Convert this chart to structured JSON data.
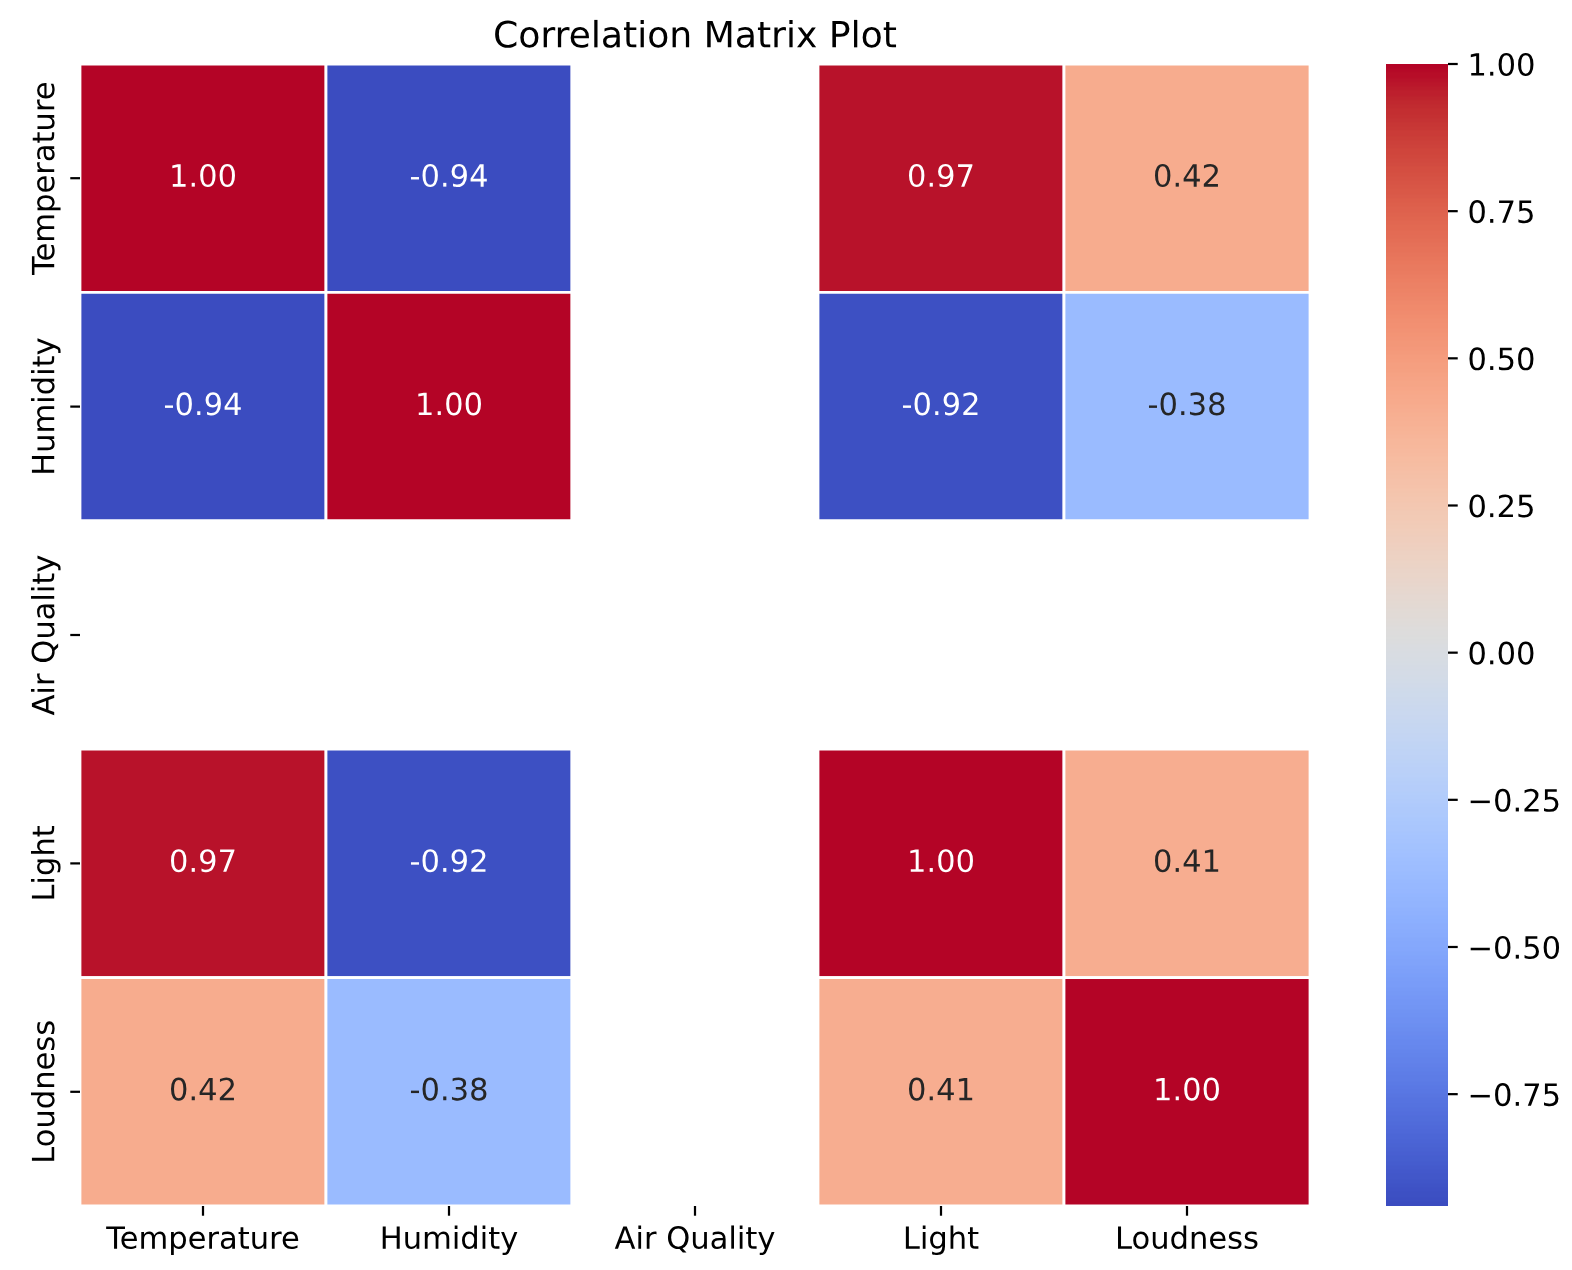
{
  "chart_data": {
    "type": "heatmap",
    "title": "Correlation Matrix Plot",
    "categories": [
      "Temperature",
      "Humidity",
      "Air Quality",
      "Light",
      "Loudness"
    ],
    "y_categories": [
      "Temperature",
      "Humidity",
      "Air Quality",
      "Light",
      "Loudness"
    ],
    "cells": [
      [
        1.0,
        -0.94,
        null,
        0.97,
        0.42
      ],
      [
        -0.94,
        1.0,
        null,
        -0.92,
        -0.38
      ],
      [
        null,
        null,
        null,
        null,
        null
      ],
      [
        0.97,
        -0.92,
        null,
        1.0,
        0.41
      ],
      [
        0.42,
        -0.38,
        null,
        0.41,
        1.0
      ]
    ],
    "cell_labels": [
      [
        "1.00",
        "-0.94",
        null,
        "0.97",
        "0.42"
      ],
      [
        "-0.94",
        "1.00",
        null,
        "-0.92",
        "-0.38"
      ],
      [
        null,
        null,
        null,
        null,
        null
      ],
      [
        "0.97",
        "-0.92",
        null,
        "1.00",
        "0.41"
      ],
      [
        "0.42",
        "-0.38",
        null,
        "0.41",
        "1.00"
      ]
    ],
    "clim": [
      -0.94,
      1.0
    ],
    "cticks": [
      {
        "value": -0.75,
        "label": "−0.75"
      },
      {
        "value": -0.5,
        "label": "−0.50"
      },
      {
        "value": -0.25,
        "label": "−0.25"
      },
      {
        "value": 0,
        "label": "0.00"
      },
      {
        "value": 0.25,
        "label": "0.25"
      },
      {
        "value": 0.5,
        "label": "0.50"
      },
      {
        "value": 0.75,
        "label": "0.75"
      },
      {
        "value": 1.0,
        "label": "1.00"
      }
    ]
  }
}
